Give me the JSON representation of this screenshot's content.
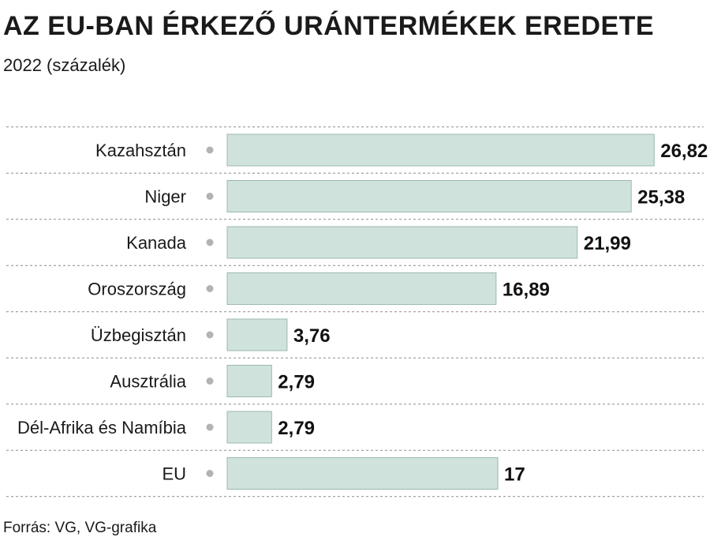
{
  "title": "AZ EU-BAN ÉRKEZŐ URÁNTERMÉKEK EREDETE",
  "subtitle": "2022 (százalék)",
  "source": "Forrás: VG, VG-grafika",
  "colors": {
    "bar_fill": "#cfe3dc",
    "bar_stroke": "#9bb8ae",
    "marker": "#b3b3b3",
    "gridline": "#8c8c8c"
  },
  "chart_data": {
    "type": "bar",
    "orientation": "horizontal",
    "categories": [
      "Kazahsztán",
      "Niger",
      "Kanada",
      "Oroszország",
      "Üzbegisztán",
      "Ausztrália",
      "Dél-Afrika és Namíbia",
      "EU"
    ],
    "values": [
      26.82,
      25.38,
      21.99,
      16.89,
      3.76,
      2.79,
      2.79,
      17
    ],
    "value_labels": [
      "26,82",
      "25,38",
      "21,99",
      "16,89",
      "3,76",
      "2,79",
      "2,79",
      "17"
    ],
    "title": "AZ EU-BAN ÉRKEZŐ URÁNTERMÉKEK EREDETE",
    "subtitle": "2022 (százalék)",
    "xlabel": "",
    "ylabel": "",
    "xlim": [
      0,
      27
    ],
    "grid": false
  }
}
